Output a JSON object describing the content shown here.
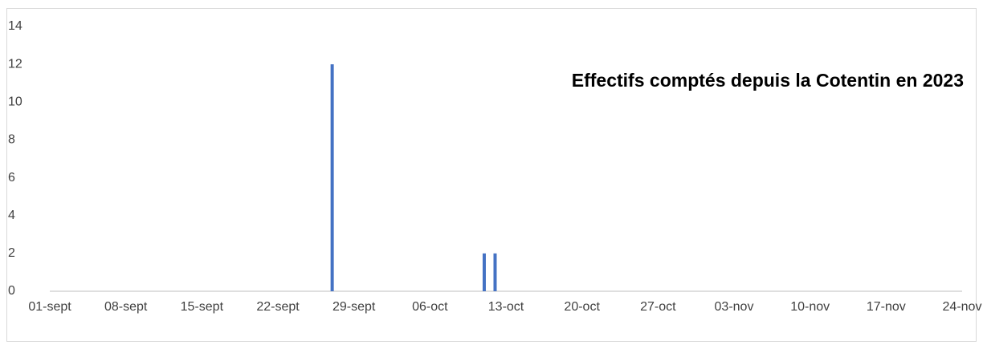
{
  "chart_data": {
    "type": "bar",
    "title": "Effectifs comptés depuis la Cotentin en 2023",
    "categories": [
      "01-sept",
      null,
      null,
      null,
      null,
      null,
      null,
      "08-sept",
      null,
      null,
      null,
      null,
      null,
      null,
      "15-sept",
      null,
      null,
      null,
      null,
      null,
      null,
      "22-sept",
      null,
      null,
      null,
      null,
      null,
      null,
      "29-sept",
      null,
      null,
      null,
      null,
      null,
      null,
      "06-oct",
      null,
      null,
      null,
      null,
      null,
      null,
      "13-oct",
      null,
      null,
      null,
      null,
      null,
      null,
      "20-oct",
      null,
      null,
      null,
      null,
      null,
      null,
      "27-oct",
      null,
      null,
      null,
      null,
      null,
      null,
      "03-nov",
      null,
      null,
      null,
      null,
      null,
      null,
      "10-nov",
      null,
      null,
      null,
      null,
      null,
      null,
      "17-nov",
      null,
      null,
      null,
      null,
      null,
      null,
      "24-nov"
    ],
    "values": [
      null,
      null,
      null,
      null,
      null,
      null,
      null,
      null,
      null,
      null,
      null,
      null,
      null,
      null,
      null,
      null,
      null,
      null,
      null,
      null,
      null,
      null,
      null,
      null,
      null,
      null,
      12,
      null,
      null,
      null,
      null,
      null,
      null,
      null,
      null,
      null,
      null,
      null,
      null,
      null,
      2,
      2,
      null,
      null,
      null,
      null,
      null,
      null,
      null,
      null,
      null,
      null,
      null,
      null,
      null,
      null,
      null,
      null,
      null,
      null,
      null,
      null,
      null,
      null,
      null,
      null,
      null,
      null,
      null,
      null,
      null,
      null,
      null,
      null,
      null,
      null,
      null,
      null,
      null,
      null,
      null,
      null,
      null,
      null,
      null
    ],
    "color": "#4472c4",
    "ylim": [
      0,
      14
    ],
    "yticks": [
      0,
      2,
      4,
      6,
      8,
      10,
      12,
      14
    ],
    "grid": false
  }
}
